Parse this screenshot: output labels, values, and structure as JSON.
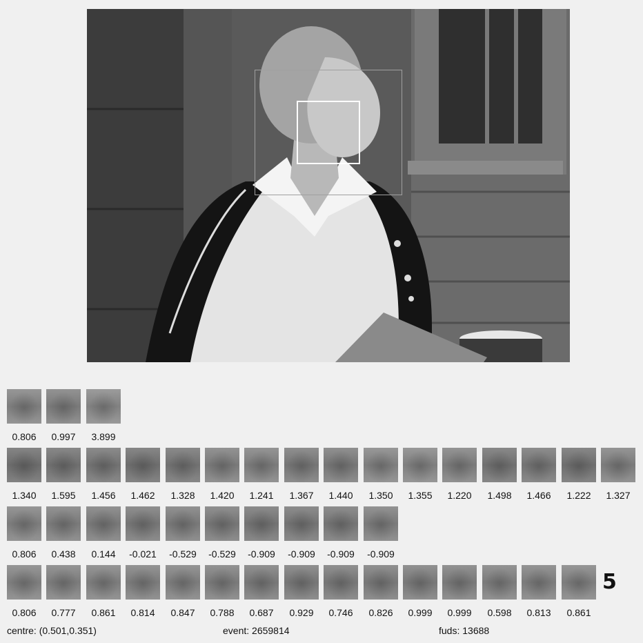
{
  "rows": [
    {
      "name": "row-1",
      "values": [
        "0.806",
        "0.997",
        "3.899"
      ],
      "tones": [
        "#8e8e8e",
        "#8a8a8a",
        "#939393"
      ]
    },
    {
      "name": "row-2",
      "values": [
        "1.340",
        "1.595",
        "1.456",
        "1.462",
        "1.328",
        "1.420",
        "1.241",
        "1.367",
        "1.440",
        "1.350",
        "1.355",
        "1.220",
        "1.498",
        "1.466",
        "1.222",
        "1.327"
      ],
      "tones": [
        "#7a7a7a",
        "#7e7e7e",
        "#818181",
        "#7c7c7c",
        "#808080",
        "#8a8a8a",
        "#8c8c8c",
        "#858585",
        "#868686",
        "#8f8f8f",
        "#909090",
        "#8b8b8b",
        "#7f7f7f",
        "#838383",
        "#7d7d7d",
        "#8c8c8c"
      ]
    },
    {
      "name": "row-3",
      "values": [
        "0.806",
        "0.438",
        "0.144",
        "-0.021",
        "-0.529",
        "-0.529",
        "-0.909",
        "-0.909",
        "-0.909",
        "-0.909"
      ],
      "tones": [
        "#8d8d8d",
        "#8a8a8a",
        "#888888",
        "#858585",
        "#888888",
        "#868686",
        "#828282",
        "#838383",
        "#848484",
        "#8a8a8a"
      ]
    },
    {
      "name": "row-4",
      "values": [
        "0.806",
        "0.777",
        "0.861",
        "0.814",
        "0.847",
        "0.788",
        "0.687",
        "0.929",
        "0.746",
        "0.826",
        "0.999",
        "0.999",
        "0.598",
        "0.813",
        "0.861"
      ],
      "tones": [
        "#8e8e8e",
        "#8c8c8c",
        "#8d8d8d",
        "#8b8b8b",
        "#8c8c8c",
        "#8a8a8a",
        "#878787",
        "#868686",
        "#868686",
        "#878787",
        "#888888",
        "#898989",
        "#8b8b8b",
        "#8c8c8c",
        "#8e8e8e"
      ]
    }
  ],
  "row_number": "5",
  "status": {
    "centre": "centre: (0.501,0.351)",
    "event": "event: 2659814",
    "fuds": "fuds: 13688"
  }
}
